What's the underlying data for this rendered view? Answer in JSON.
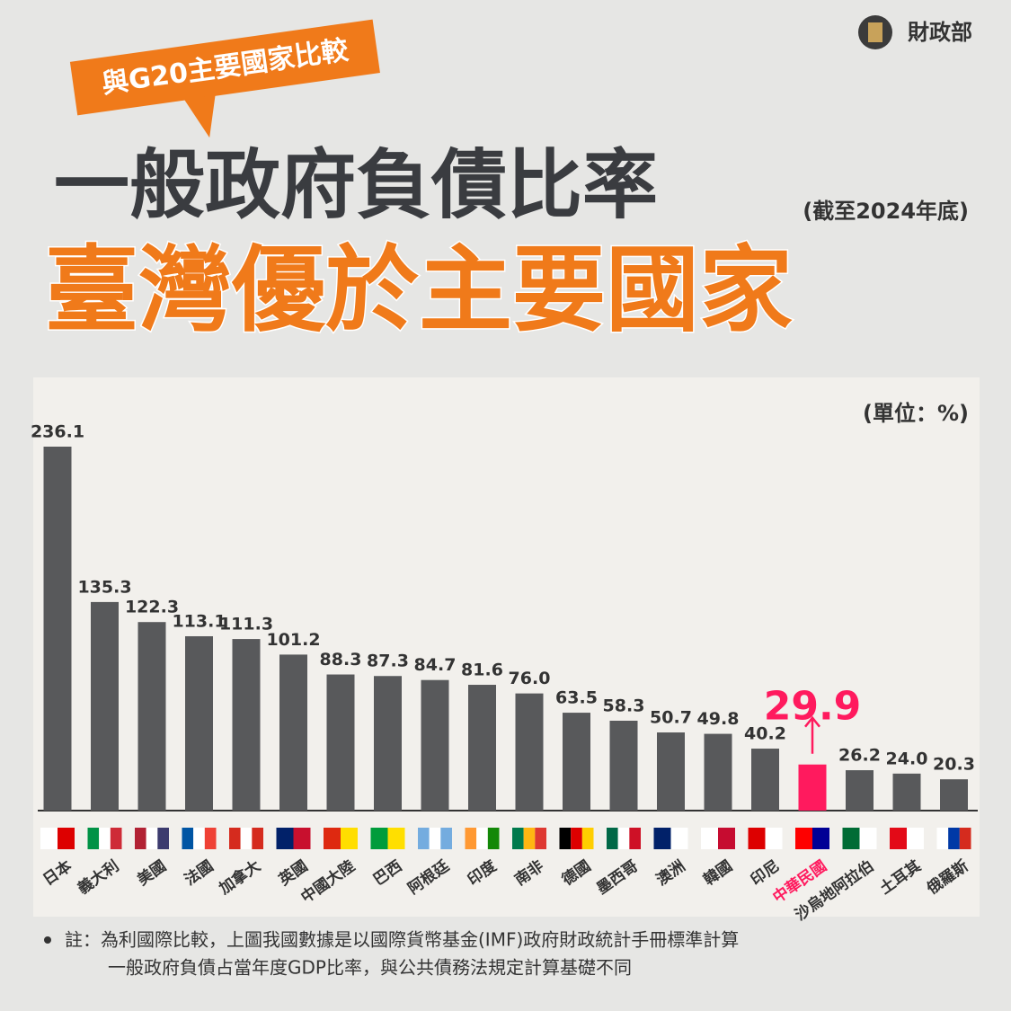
{
  "logo": "財政部",
  "badge": "與G20主要國家比較",
  "title": "一般政府負債比率",
  "subtitle": "(截至2024年底)",
  "headline": "臺灣優於主要國家",
  "note": {
    "bullet": "註：為利國際比較，上圖我國數據是以國際貨幣基金(IMF)政府財政統計手冊標準計算",
    "line2": "一般政府負債占當年度GDP比率，與公共債務法規定計算基礎不同"
  },
  "chart_data": {
    "type": "bar",
    "unit": "(單位：%)",
    "categories": [
      "日本",
      "義大利",
      "美國",
      "法國",
      "加拿大",
      "英國",
      "中國大陸",
      "巴西",
      "阿根廷",
      "印度",
      "南非",
      "德國",
      "墨西哥",
      "澳洲",
      "韓國",
      "印尼",
      "中華民國",
      "沙烏地阿拉伯",
      "土耳其",
      "俄羅斯"
    ],
    "values": [
      236.1,
      135.3,
      122.3,
      113.1,
      111.3,
      101.2,
      88.3,
      87.3,
      84.7,
      81.6,
      76.0,
      63.5,
      58.3,
      50.7,
      49.8,
      40.2,
      29.9,
      26.2,
      24.0,
      20.3
    ],
    "value_labels": [
      "236.1",
      "135.3",
      "122.3",
      "113.1",
      "111.3",
      "101.2",
      "88.3",
      "87.3",
      "84.7",
      "81.6",
      "76.0",
      "63.5",
      "58.3",
      "50.7",
      "49.8",
      "40.2",
      "29.9",
      "26.2",
      "24.0",
      "20.3"
    ],
    "color": "#58595b",
    "colors": [
      "#58595b",
      "#58595b",
      "#58595b",
      "#58595b",
      "#58595b",
      "#58595b",
      "#58595b",
      "#58595b",
      "#58595b",
      "#58595b",
      "#58595b",
      "#58595b",
      "#58595b",
      "#58595b",
      "#58595b",
      "#58595b",
      "#ff1a5e",
      "#58595b",
      "#58595b",
      "#58595b"
    ]
  }
}
